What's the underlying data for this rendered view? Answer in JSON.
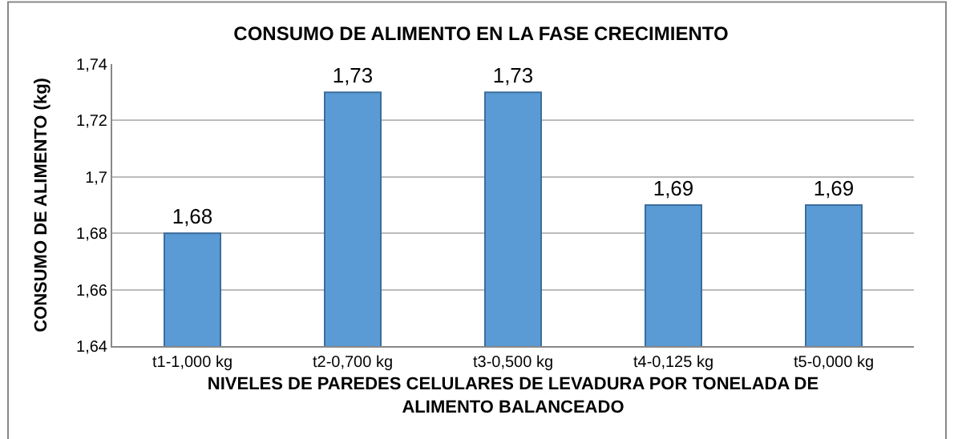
{
  "chart_data": {
    "type": "bar",
    "title": "CONSUMO DE ALIMENTO EN LA FASE CRECIMIENTO",
    "xlabel": "NIVELES DE PAREDES CELULARES DE LEVADURA POR TONELADA DE ALIMENTO BALANCEADO",
    "ylabel": "CONSUMO DE ALIMENTO (kg)",
    "categories": [
      "t1-1,000 kg",
      "t2-0,700 kg",
      "t3-0,500 kg",
      "t4-0,125 kg",
      "t5-0,000 kg"
    ],
    "values": [
      1.68,
      1.73,
      1.73,
      1.69,
      1.69
    ],
    "value_labels": [
      "1,68",
      "1,73",
      "1,73",
      "1,69",
      "1,69"
    ],
    "color": "#5b9bd5",
    "ylim": [
      1.64,
      1.74
    ],
    "yticks": [
      {
        "value": 1.64,
        "label": "1,64"
      },
      {
        "value": 1.66,
        "label": "1,66"
      },
      {
        "value": 1.68,
        "label": "1,68"
      },
      {
        "value": 1.7,
        "label": "1,7"
      },
      {
        "value": 1.72,
        "label": "1,72"
      },
      {
        "value": 1.74,
        "label": "1,74"
      }
    ],
    "grid": "y"
  }
}
